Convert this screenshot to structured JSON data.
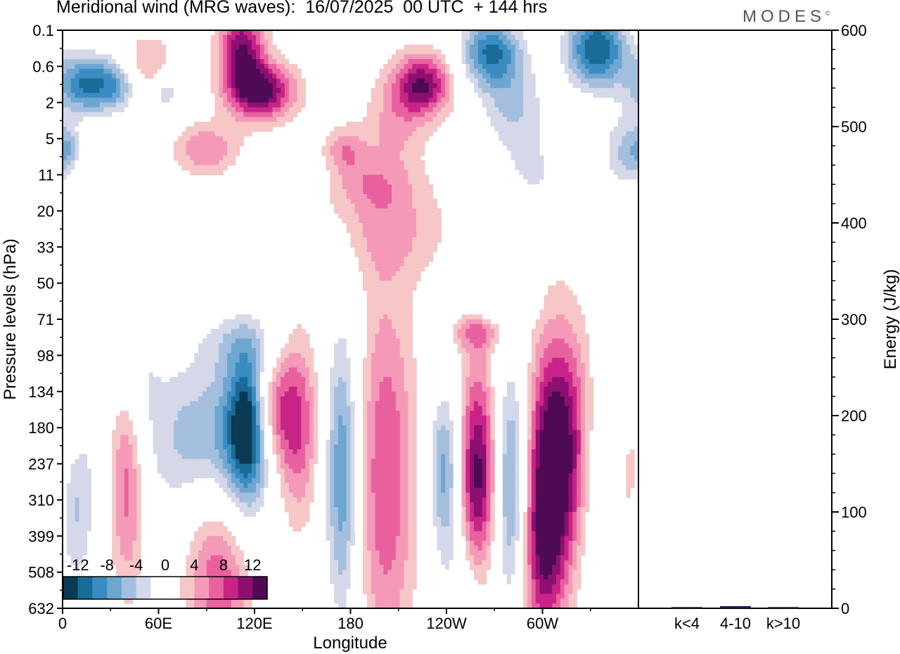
{
  "title": "Meridional wind (MRG waves):  16/07/2025  00 UTC  + 144 hrs",
  "brand": "MODES",
  "brand_mark": "©",
  "chart_data": [
    {
      "type": "heatmap",
      "title": "Meridional wind (MRG waves):  16/07/2025  00 UTC  + 144 hrs",
      "xlabel": "Longitude",
      "ylabel": "Pressure levels (hPa)",
      "x_ticks": [
        "0",
        "60E",
        "120E",
        "180",
        "120W",
        "60W"
      ],
      "x_range_deg_east": [
        0,
        360
      ],
      "y_ticks": [
        "0.1",
        "0.6",
        "2",
        "5",
        "11",
        "20",
        "33",
        "50",
        "71",
        "98",
        "134",
        "180",
        "237",
        "310",
        "399",
        "508",
        "632"
      ],
      "colorbar": {
        "labels": [
          "-12",
          "-8",
          "-4",
          "0",
          "4",
          "8",
          "12"
        ],
        "levels": [
          -14,
          -12,
          -10,
          -8,
          -6,
          -4,
          -2,
          2,
          4,
          6,
          8,
          10,
          12,
          14
        ],
        "colors": [
          "#0b3a55",
          "#1a6c96",
          "#3a8cc2",
          "#6ea6d0",
          "#a4bfdd",
          "#d5d8e8",
          "#ffffff",
          "#ffffff",
          "#f7c6c6",
          "#f49ab8",
          "#e8619e",
          "#c82488",
          "#8e0f72",
          "#4e0a55"
        ]
      },
      "blobs": [
        {
          "lon": 15,
          "lev": 1.5,
          "value": -12,
          "wlon": 14,
          "wlev": 0.6
        },
        {
          "lon": 36,
          "lev": 1.5,
          "value": -6,
          "wlon": 10,
          "wlev": 0.55
        },
        {
          "lon": 65,
          "lev": 1.7,
          "value": -6,
          "wlon": 6,
          "wlev": 0.45
        },
        {
          "lon": 3,
          "lev": 3.3,
          "value": -6,
          "wlon": 6,
          "wlev": 0.5
        },
        {
          "lon": 112,
          "lev": 0.6,
          "value": 12,
          "wlon": 10,
          "wlev": 0.9
        },
        {
          "lon": 126,
          "lev": 1.7,
          "value": 12,
          "wlon": 14,
          "wlev": 0.55
        },
        {
          "lon": 90,
          "lev": 3.3,
          "value": 6,
          "wlon": 14,
          "wlev": 0.5
        },
        {
          "lon": 52,
          "lev": 1.0,
          "value": 5,
          "wlon": 12,
          "wlev": 0.6
        },
        {
          "lon": 176,
          "lev": 3.3,
          "value": 5,
          "wlon": 9,
          "wlev": 0.45
        },
        {
          "lon": 225,
          "lev": 1.5,
          "value": 12,
          "wlon": 13,
          "wlev": 0.6
        },
        {
          "lon": 208,
          "lev": 2.6,
          "value": 4,
          "wlon": 14,
          "wlev": 0.8
        },
        {
          "lon": 268,
          "lev": 0.6,
          "value": -12,
          "wlon": 14,
          "wlev": 0.7
        },
        {
          "lon": 282,
          "lev": 2.2,
          "value": -6,
          "wlon": 16,
          "wlev": 0.9
        },
        {
          "lon": 334,
          "lev": 0.5,
          "value": -14,
          "wlon": 14,
          "wlev": 0.8
        },
        {
          "lon": 350,
          "lev": 3.4,
          "value": -6,
          "wlon": 10,
          "wlev": 0.8
        },
        {
          "lon": 295,
          "lev": 4.0,
          "value": -4,
          "wlon": 14,
          "wlev": 0.7
        },
        {
          "lon": 206,
          "lev": 5.5,
          "value": 4,
          "wlon": 26,
          "wlev": 1.0
        },
        {
          "lon": 190,
          "lev": 4.2,
          "value": 4,
          "wlon": 20,
          "wlev": 0.6
        },
        {
          "lon": 142,
          "lev": 4.0,
          "value": -4,
          "wlon": 16,
          "wlev": 0.4
        },
        {
          "lon": 112,
          "lev": 8.6,
          "value": -4,
          "wlon": 20,
          "wlev": 0.6
        },
        {
          "lon": 260,
          "lev": 8.3,
          "value": 6,
          "wlon": 12,
          "wlev": 0.4
        },
        {
          "lon": 268,
          "lev": 7.7,
          "value": -4,
          "wlon": 16,
          "wlev": 0.35
        },
        {
          "lon": 95,
          "lev": 11.4,
          "value": -10,
          "wlon": 30,
          "wlev": 1.7
        },
        {
          "lon": 116,
          "lev": 10.9,
          "value": -12,
          "wlon": 9,
          "wlev": 1.4
        },
        {
          "lon": 130,
          "lev": 10.6,
          "value": 8,
          "wlon": 9,
          "wlev": 1.1
        },
        {
          "lon": 146,
          "lev": 11.0,
          "value": 10,
          "wlon": 10,
          "wlev": 1.8
        },
        {
          "lon": 40,
          "lev": 12.3,
          "value": 8,
          "wlon": 8,
          "wlev": 2.2
        },
        {
          "lon": 45,
          "lev": 9.4,
          "value": -4,
          "wlon": 10,
          "wlev": 1.2
        },
        {
          "lon": 90,
          "lev": 13.5,
          "value": 4,
          "wlon": 14,
          "wlev": 2.3
        },
        {
          "lon": 13,
          "lev": 13.0,
          "value": -4,
          "wlon": 10,
          "wlev": 2.3
        },
        {
          "lon": 5,
          "lev": 11.0,
          "value": 4,
          "wlon": 6,
          "wlev": 1.4
        },
        {
          "lon": 175,
          "lev": 12.3,
          "value": -10,
          "wlon": 8,
          "wlev": 3.0
        },
        {
          "lon": 202,
          "lev": 12.3,
          "value": 8,
          "wlon": 13,
          "wlev": 3.6
        },
        {
          "lon": 240,
          "lev": 12.2,
          "value": -10,
          "wlon": 8,
          "wlev": 1.7
        },
        {
          "lon": 260,
          "lev": 12.3,
          "value": 14,
          "wlon": 10,
          "wlev": 2.1
        },
        {
          "lon": 280,
          "lev": 12.5,
          "value": -12,
          "wlon": 9,
          "wlev": 2.4
        },
        {
          "lon": 310,
          "lev": 11.5,
          "value": 14,
          "wlon": 14,
          "wlev": 2.3
        },
        {
          "lon": 300,
          "lev": 14.3,
          "value": 10,
          "wlon": 10,
          "wlev": 2.0
        },
        {
          "lon": 336,
          "lev": 12.6,
          "value": -4,
          "wlon": 10,
          "wlev": 2.3
        },
        {
          "lon": 250,
          "lev": 15.5,
          "value": -4,
          "wlon": 10,
          "wlev": 1.3
        },
        {
          "lon": 100,
          "lev": 15.6,
          "value": 6,
          "wlon": 12,
          "wlev": 1.8
        },
        {
          "lon": 6,
          "lev": 12.5,
          "value": -4,
          "wlon": 6,
          "wlev": 1.8
        },
        {
          "lon": 355,
          "lev": 12.5,
          "value": 4,
          "wlon": 4,
          "wlev": 1.2
        }
      ]
    },
    {
      "type": "bar",
      "ylabel": "Energy (J/kg)",
      "categories": [
        "k<4",
        "4-10",
        "k>10"
      ],
      "values": [
        0.3,
        1.5,
        0.0
      ],
      "ylim": [
        0,
        600
      ],
      "y_ticks": [
        "0",
        "100",
        "200",
        "300",
        "400",
        "500",
        "600"
      ],
      "bar_color": "#1a1a5e"
    }
  ]
}
